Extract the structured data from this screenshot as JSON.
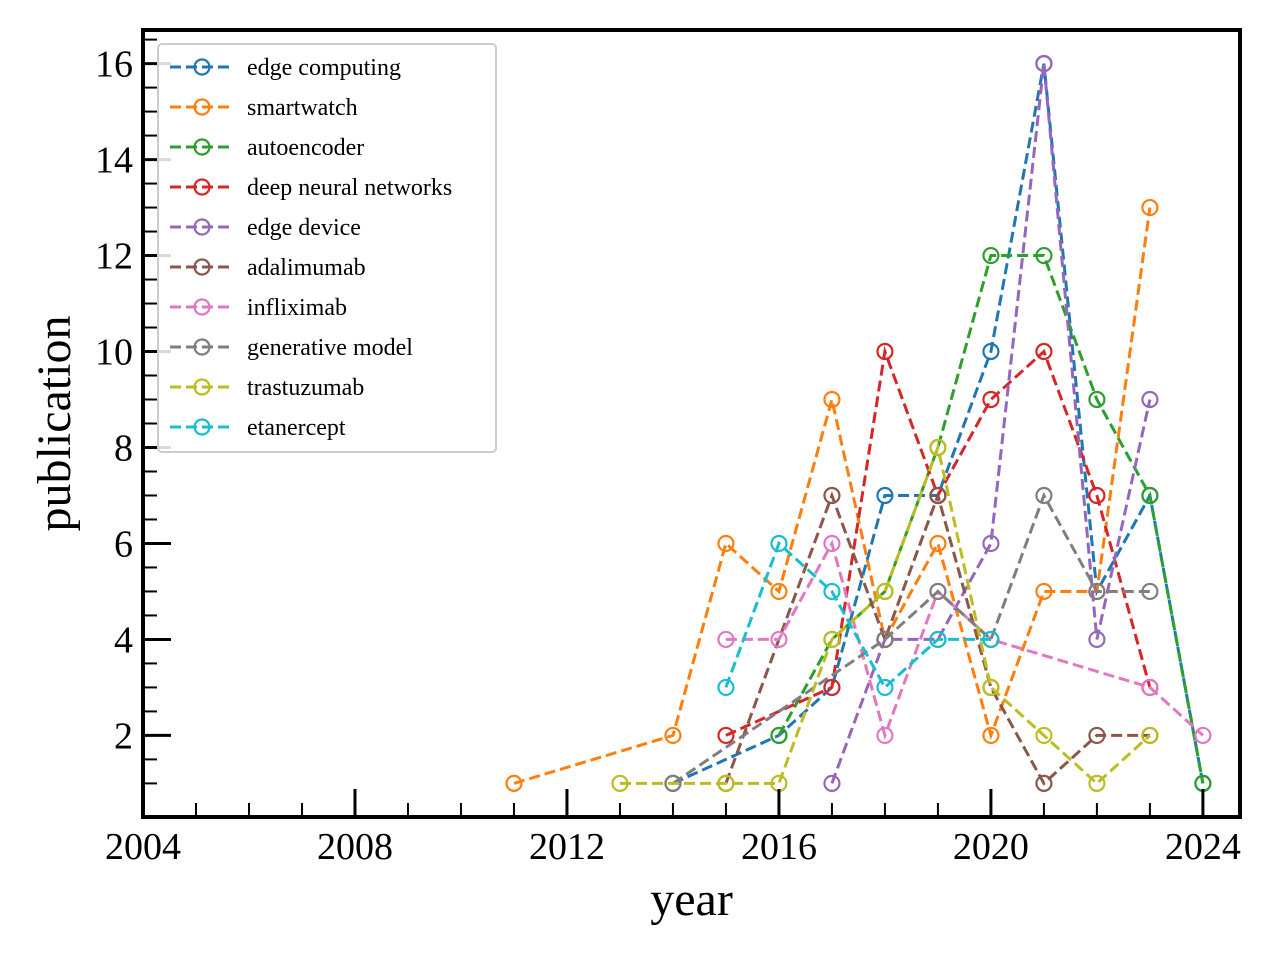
{
  "chart_data": {
    "type": "line",
    "xlabel": "year",
    "ylabel": "publication",
    "xlim": [
      2004,
      2024.7
    ],
    "ylim": [
      0.3,
      16.7
    ],
    "xticks": [
      2004,
      2008,
      2012,
      2016,
      2020,
      2024
    ],
    "yticks": [
      2,
      4,
      6,
      8,
      10,
      12,
      14,
      16
    ],
    "grid": false,
    "legend_position": "top-left",
    "line_style": "dashed",
    "marker": "open-circle",
    "series": [
      {
        "name": "edge computing",
        "color": "#1f77b4",
        "points": [
          [
            2014,
            1
          ],
          [
            2016,
            2
          ],
          [
            2017,
            3
          ],
          [
            2018,
            7
          ],
          [
            2019,
            7
          ],
          [
            2020,
            10
          ],
          [
            2021,
            16
          ],
          [
            2022,
            5
          ],
          [
            2023,
            7
          ],
          [
            2024,
            1
          ]
        ]
      },
      {
        "name": "smartwatch",
        "color": "#ff7f0e",
        "points": [
          [
            2011,
            1
          ],
          [
            2014,
            2
          ],
          [
            2015,
            6
          ],
          [
            2016,
            5
          ],
          [
            2017,
            9
          ],
          [
            2018,
            4
          ],
          [
            2019,
            6
          ],
          [
            2020,
            2
          ],
          [
            2021,
            5
          ],
          [
            2022,
            5
          ],
          [
            2023,
            13
          ]
        ]
      },
      {
        "name": "autoencoder",
        "color": "#2ca02c",
        "points": [
          [
            2016,
            2
          ],
          [
            2017,
            4
          ],
          [
            2018,
            5
          ],
          [
            2019,
            8
          ],
          [
            2020,
            12
          ],
          [
            2021,
            12
          ],
          [
            2022,
            9
          ],
          [
            2023,
            7
          ],
          [
            2024,
            1
          ]
        ]
      },
      {
        "name": "deep neural networks",
        "color": "#d62728",
        "points": [
          [
            2015,
            2
          ],
          [
            2017,
            3
          ],
          [
            2018,
            10
          ],
          [
            2019,
            7
          ],
          [
            2020,
            9
          ],
          [
            2021,
            10
          ],
          [
            2022,
            7
          ],
          [
            2023,
            3
          ]
        ]
      },
      {
        "name": "edge device",
        "color": "#9467bd",
        "points": [
          [
            2017,
            1
          ],
          [
            2018,
            4
          ],
          [
            2019,
            4
          ],
          [
            2020,
            6
          ],
          [
            2021,
            16
          ],
          [
            2022,
            4
          ],
          [
            2023,
            9
          ]
        ]
      },
      {
        "name": "adalimumab",
        "color": "#8c564b",
        "points": [
          [
            2015,
            1
          ],
          [
            2017,
            7
          ],
          [
            2018,
            4
          ],
          [
            2019,
            7
          ],
          [
            2020,
            3
          ],
          [
            2021,
            1
          ],
          [
            2022,
            2
          ],
          [
            2023,
            2
          ]
        ]
      },
      {
        "name": "infliximab",
        "color": "#e377c2",
        "points": [
          [
            2015,
            4
          ],
          [
            2016,
            4
          ],
          [
            2017,
            6
          ],
          [
            2018,
            2
          ],
          [
            2019,
            5
          ],
          [
            2020,
            4
          ],
          [
            2023,
            3
          ],
          [
            2024,
            2
          ]
        ]
      },
      {
        "name": "generative model",
        "color": "#7f7f7f",
        "points": [
          [
            2014,
            1
          ],
          [
            2018,
            4
          ],
          [
            2019,
            5
          ],
          [
            2020,
            4
          ],
          [
            2021,
            7
          ],
          [
            2022,
            5
          ],
          [
            2023,
            5
          ]
        ]
      },
      {
        "name": "trastuzumab",
        "color": "#bcbd22",
        "points": [
          [
            2013,
            1
          ],
          [
            2015,
            1
          ],
          [
            2016,
            1
          ],
          [
            2017,
            4
          ],
          [
            2018,
            5
          ],
          [
            2019,
            8
          ],
          [
            2020,
            3
          ],
          [
            2021,
            2
          ],
          [
            2022,
            1
          ],
          [
            2023,
            2
          ]
        ]
      },
      {
        "name": "etanercept",
        "color": "#17becf",
        "points": [
          [
            2015,
            3
          ],
          [
            2016,
            6
          ],
          [
            2017,
            5
          ],
          [
            2018,
            3
          ],
          [
            2019,
            4
          ],
          [
            2020,
            4
          ]
        ]
      }
    ]
  }
}
